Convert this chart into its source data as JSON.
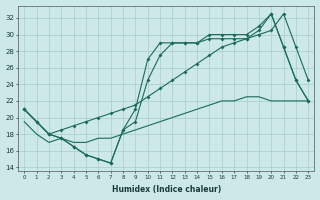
{
  "xlabel": "Humidex (Indice chaleur)",
  "bg_color": "#cce8e8",
  "grid_color": "#aacccc",
  "line_color": "#1a6b5a",
  "xlim": [
    -0.5,
    23.5
  ],
  "ylim": [
    13.5,
    33.5
  ],
  "yticks": [
    14,
    16,
    18,
    20,
    22,
    24,
    26,
    28,
    30,
    32
  ],
  "xticks": [
    0,
    1,
    2,
    3,
    4,
    5,
    6,
    7,
    8,
    9,
    10,
    11,
    12,
    13,
    14,
    15,
    16,
    17,
    18,
    19,
    20,
    21,
    22,
    23
  ],
  "s1x": [
    0,
    1,
    2,
    3,
    4,
    5,
    6,
    7,
    8,
    9,
    10,
    11,
    12,
    13,
    14,
    15,
    16,
    17,
    18,
    19,
    20,
    21,
    22,
    23
  ],
  "s1y": [
    21.0,
    19.5,
    18.0,
    17.5,
    16.5,
    15.5,
    15.0,
    14.5,
    18.5,
    21.0,
    27.0,
    29.0,
    29.0,
    29.0,
    29.0,
    30.0,
    30.0,
    30.0,
    30.0,
    31.0,
    32.5,
    28.5,
    24.5,
    22.0
  ],
  "s2x": [
    0,
    1,
    2,
    3,
    4,
    5,
    6,
    7,
    8,
    9,
    10,
    11,
    12,
    13,
    14,
    15,
    16,
    17,
    18,
    19,
    20,
    21,
    22,
    23
  ],
  "s2y": [
    21.0,
    19.5,
    18.0,
    17.5,
    16.5,
    15.5,
    15.0,
    14.5,
    18.5,
    19.5,
    24.5,
    27.5,
    29.0,
    29.0,
    29.0,
    29.5,
    29.5,
    29.5,
    29.5,
    30.5,
    32.5,
    28.5,
    24.5,
    22.0
  ],
  "s3x": [
    0,
    2,
    3,
    4,
    5,
    6,
    7,
    8,
    9,
    10,
    11,
    12,
    13,
    14,
    15,
    16,
    17,
    18,
    19,
    20,
    21,
    22,
    23
  ],
  "s3y": [
    21.0,
    18.0,
    18.5,
    19.0,
    19.5,
    20.0,
    20.5,
    21.0,
    21.5,
    22.5,
    23.5,
    24.5,
    25.5,
    26.5,
    27.5,
    28.5,
    29.0,
    29.5,
    30.0,
    30.5,
    32.5,
    28.5,
    24.5
  ],
  "s4x": [
    0,
    1,
    2,
    3,
    4,
    5,
    6,
    7,
    8,
    9,
    10,
    11,
    12,
    13,
    14,
    15,
    16,
    17,
    18,
    19,
    20,
    21,
    22,
    23
  ],
  "s4y": [
    19.5,
    18.0,
    17.0,
    17.5,
    17.0,
    17.0,
    17.5,
    17.5,
    18.0,
    18.5,
    19.0,
    19.5,
    20.0,
    20.5,
    21.0,
    21.5,
    22.0,
    22.0,
    22.5,
    22.5,
    22.0,
    22.0,
    22.0,
    22.0
  ]
}
